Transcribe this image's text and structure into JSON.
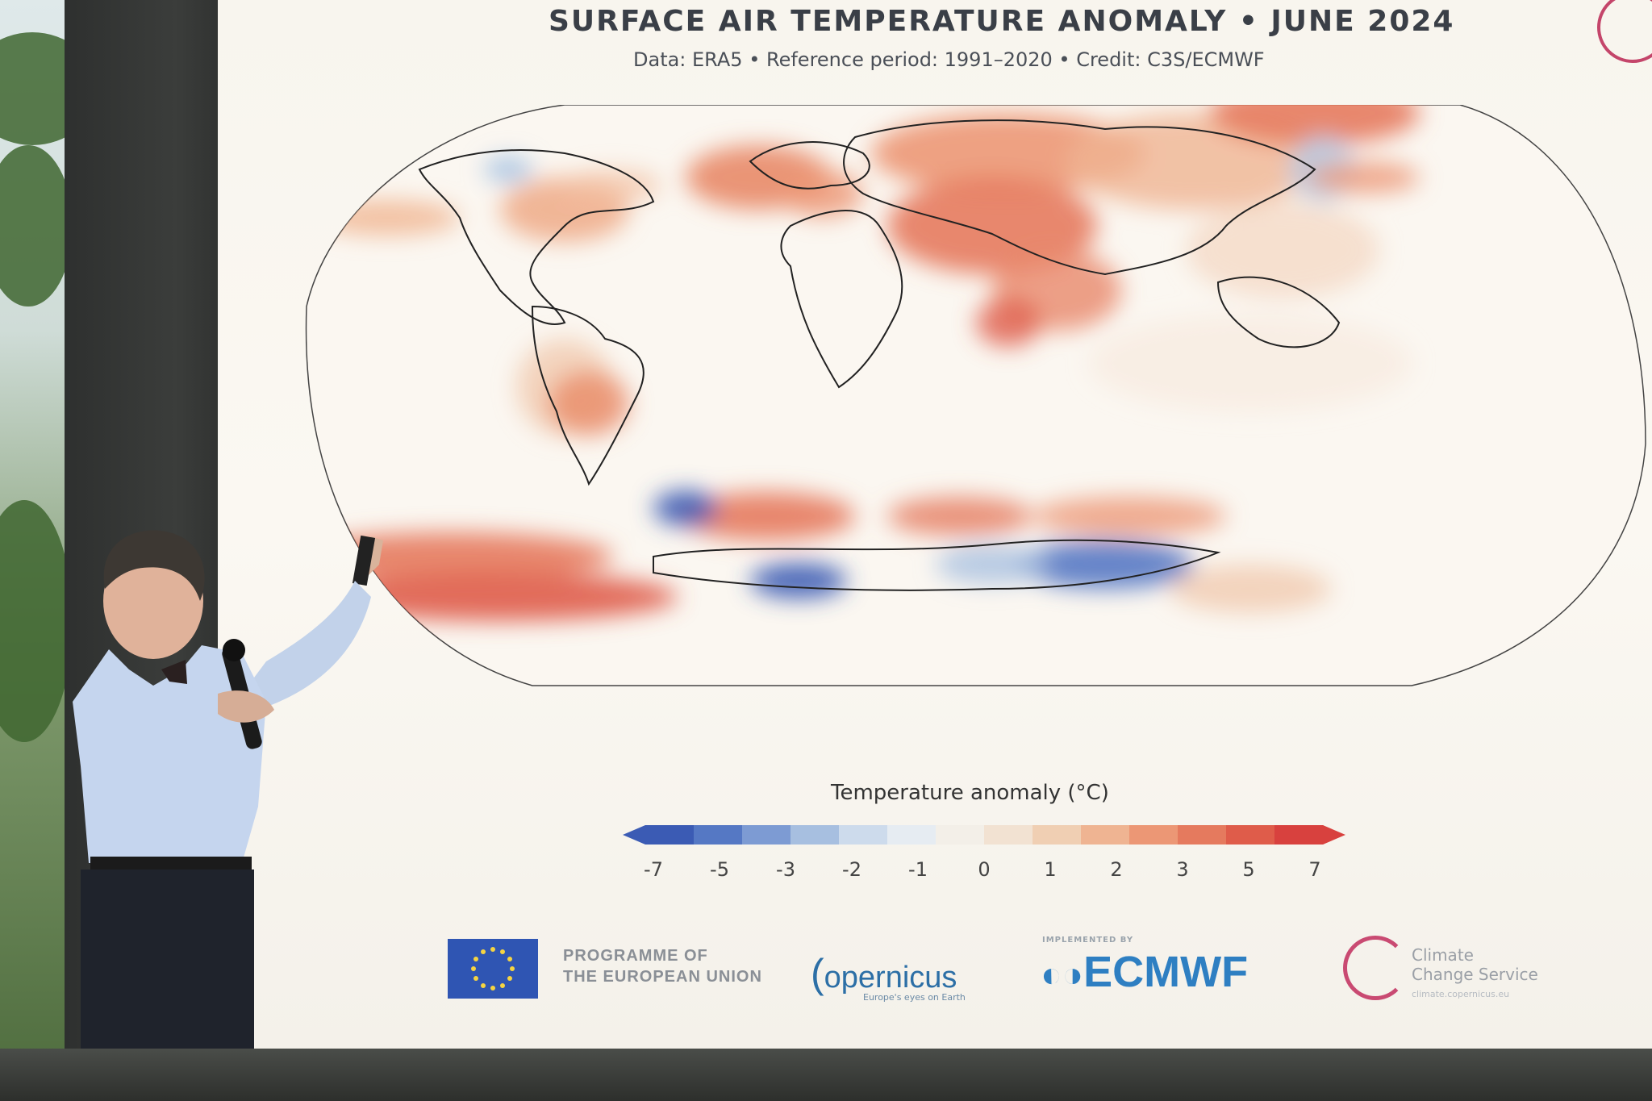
{
  "screen": {
    "title": "SURFACE AIR TEMPERATURE ANOMALY • JUNE 2024",
    "subtitle": "Data: ERA5 • Reference period: 1991–2020 • Credit: C3S/ECMWF",
    "legend_title": "Temperature anomaly (°C)",
    "colorbar_ticks": [
      "-7",
      "-5",
      "-3",
      "-2",
      "-1",
      "0",
      "1",
      "2",
      "3",
      "5",
      "7"
    ],
    "colorbar_colors": [
      "#3b5bb4",
      "#5578c4",
      "#7d9bd3",
      "#a7bfe0",
      "#cddbec",
      "#e6ecf2",
      "#f3efe8",
      "#f2e2d2",
      "#f0cfb3",
      "#efb492",
      "#ec9775",
      "#e57a5e",
      "#df5c4a",
      "#d8413e"
    ]
  },
  "logos": {
    "eu_text": "PROGRAMME OF\nTHE EUROPEAN UNION",
    "copernicus": "opernicus",
    "copernicus_tagline": "Europe's eyes on Earth",
    "ecmwf_small": "IMPLEMENTED BY",
    "ecmwf": "ECMWF",
    "c3s": "Climate\nChange Service",
    "c3s_url": "climate.copernicus.eu"
  }
}
